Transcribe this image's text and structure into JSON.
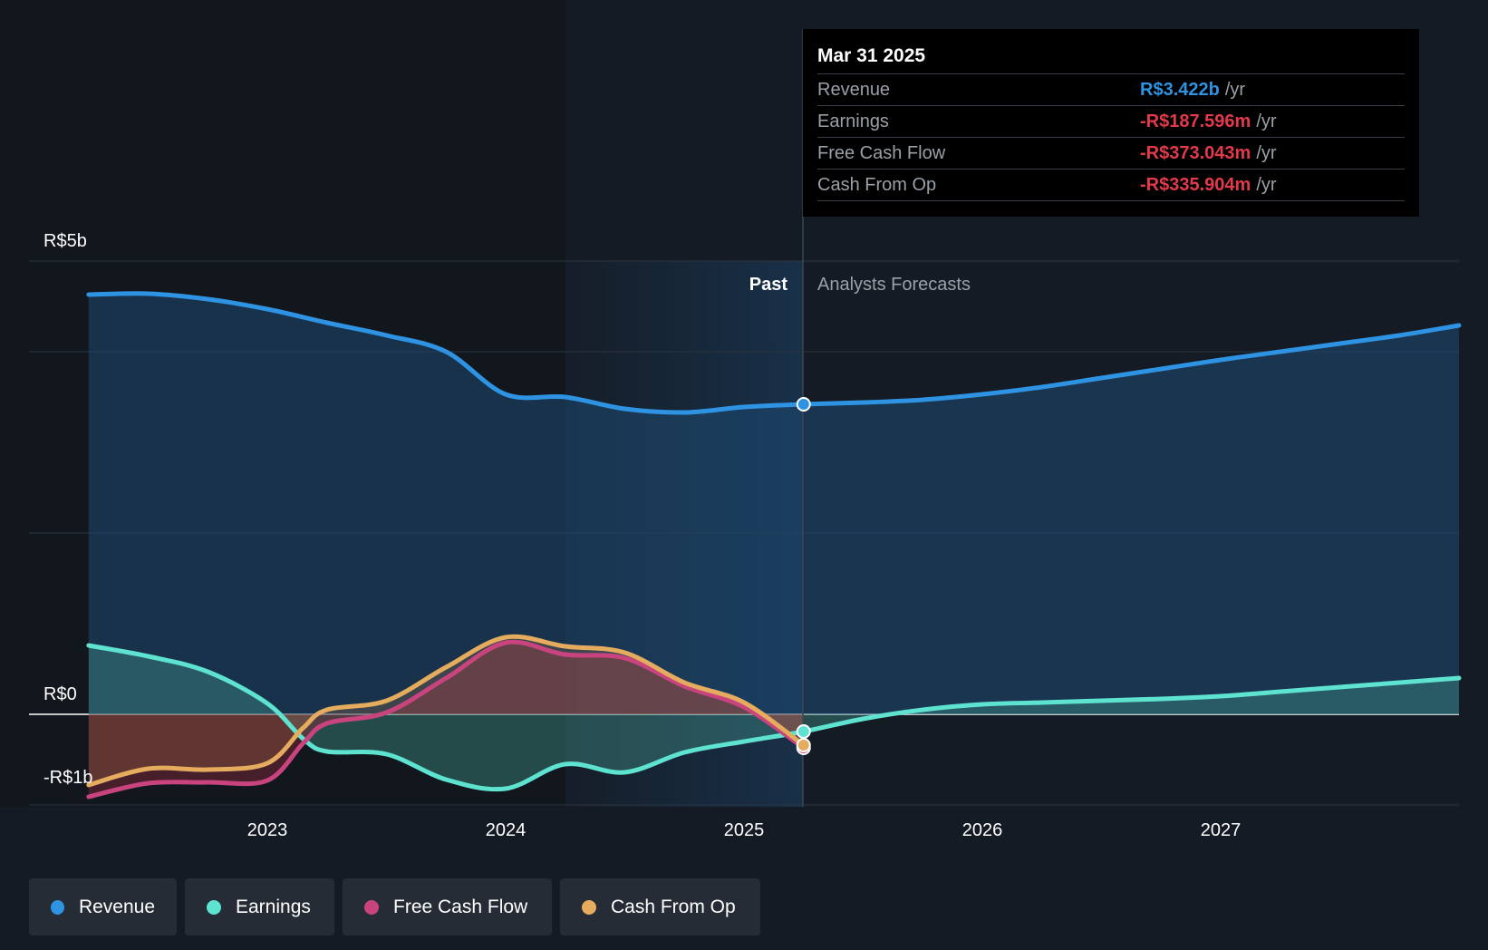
{
  "chart_data": {
    "type": "line",
    "x_axis": {
      "ticks": [
        "2023",
        "2024",
        "2025",
        "2026",
        "2027"
      ]
    },
    "y_axis": {
      "tick_labels": [
        "R$5b",
        "R$0",
        "-R$1b"
      ],
      "unit": "R$ billions"
    },
    "divider": {
      "past_label": "Past",
      "forecast_label": "Analysts Forecasts",
      "date": "Mar 31 2025"
    },
    "series": [
      {
        "name": "Revenue",
        "color": "#2e93e2",
        "points": [
          [
            2022.25,
            4.63
          ],
          [
            2022.5,
            4.64
          ],
          [
            2022.75,
            4.58
          ],
          [
            2023.0,
            4.47
          ],
          [
            2023.25,
            4.32
          ],
          [
            2023.5,
            4.18
          ],
          [
            2023.75,
            4.0
          ],
          [
            2024.0,
            3.53
          ],
          [
            2024.25,
            3.5
          ],
          [
            2024.5,
            3.37
          ],
          [
            2024.75,
            3.33
          ],
          [
            2025.0,
            3.39
          ],
          [
            2025.25,
            3.42
          ],
          [
            2025.5,
            3.44
          ],
          [
            2025.75,
            3.47
          ],
          [
            2026.0,
            3.53
          ],
          [
            2026.25,
            3.61
          ],
          [
            2026.5,
            3.71
          ],
          [
            2026.75,
            3.81
          ],
          [
            2027.0,
            3.91
          ],
          [
            2027.25,
            4.0
          ],
          [
            2027.5,
            4.09
          ],
          [
            2027.75,
            4.18
          ],
          [
            2028.0,
            4.29
          ]
        ]
      },
      {
        "name": "Earnings",
        "color": "#5ee3d1",
        "points": [
          [
            2022.25,
            0.76
          ],
          [
            2022.5,
            0.64
          ],
          [
            2022.75,
            0.47
          ],
          [
            2023.0,
            0.12
          ],
          [
            2023.15,
            -0.27
          ],
          [
            2023.25,
            -0.41
          ],
          [
            2023.5,
            -0.44
          ],
          [
            2023.75,
            -0.72
          ],
          [
            2024.0,
            -0.82
          ],
          [
            2024.25,
            -0.55
          ],
          [
            2024.5,
            -0.64
          ],
          [
            2024.75,
            -0.42
          ],
          [
            2025.0,
            -0.3
          ],
          [
            2025.25,
            -0.19
          ],
          [
            2025.5,
            -0.05
          ],
          [
            2025.75,
            0.05
          ],
          [
            2026.0,
            0.11
          ],
          [
            2026.25,
            0.13
          ],
          [
            2026.5,
            0.15
          ],
          [
            2026.75,
            0.17
          ],
          [
            2027.0,
            0.2
          ],
          [
            2027.25,
            0.25
          ],
          [
            2027.5,
            0.3
          ],
          [
            2027.75,
            0.35
          ],
          [
            2028.0,
            0.4
          ]
        ]
      },
      {
        "name": "Free Cash Flow",
        "color": "#c9447f",
        "points": [
          [
            2022.25,
            -0.91
          ],
          [
            2022.5,
            -0.76
          ],
          [
            2022.75,
            -0.75
          ],
          [
            2023.0,
            -0.73
          ],
          [
            2023.15,
            -0.32
          ],
          [
            2023.25,
            -0.1
          ],
          [
            2023.5,
            0.02
          ],
          [
            2023.75,
            0.4
          ],
          [
            2024.0,
            0.79
          ],
          [
            2024.25,
            0.66
          ],
          [
            2024.5,
            0.62
          ],
          [
            2024.75,
            0.31
          ],
          [
            2025.0,
            0.08
          ],
          [
            2025.25,
            -0.37
          ]
        ]
      },
      {
        "name": "Cash From Op",
        "color": "#e6ac5e",
        "points": [
          [
            2022.25,
            -0.78
          ],
          [
            2022.5,
            -0.6
          ],
          [
            2022.75,
            -0.61
          ],
          [
            2023.0,
            -0.54
          ],
          [
            2023.15,
            -0.15
          ],
          [
            2023.25,
            0.05
          ],
          [
            2023.5,
            0.15
          ],
          [
            2023.75,
            0.52
          ],
          [
            2024.0,
            0.85
          ],
          [
            2024.25,
            0.75
          ],
          [
            2024.5,
            0.68
          ],
          [
            2024.75,
            0.35
          ],
          [
            2025.0,
            0.13
          ],
          [
            2025.25,
            -0.34
          ]
        ]
      }
    ],
    "grid": true
  },
  "tooltip": {
    "date": "Mar 31 2025",
    "rows": [
      {
        "name": "Revenue",
        "value": "R$3.422b",
        "unit": "/yr",
        "color": "#2e93e2"
      },
      {
        "name": "Earnings",
        "value": "-R$187.596m",
        "unit": "/yr",
        "color": "#e2394b"
      },
      {
        "name": "Free Cash Flow",
        "value": "-R$373.043m",
        "unit": "/yr",
        "color": "#e2394b"
      },
      {
        "name": "Cash From Op",
        "value": "-R$335.904m",
        "unit": "/yr",
        "color": "#e2394b"
      }
    ]
  },
  "legend": [
    {
      "label": "Revenue",
      "color": "#2e93e2"
    },
    {
      "label": "Earnings",
      "color": "#5ee3d1"
    },
    {
      "label": "Free Cash Flow",
      "color": "#c9447f"
    },
    {
      "label": "Cash From Op",
      "color": "#e6ac5e"
    }
  ]
}
